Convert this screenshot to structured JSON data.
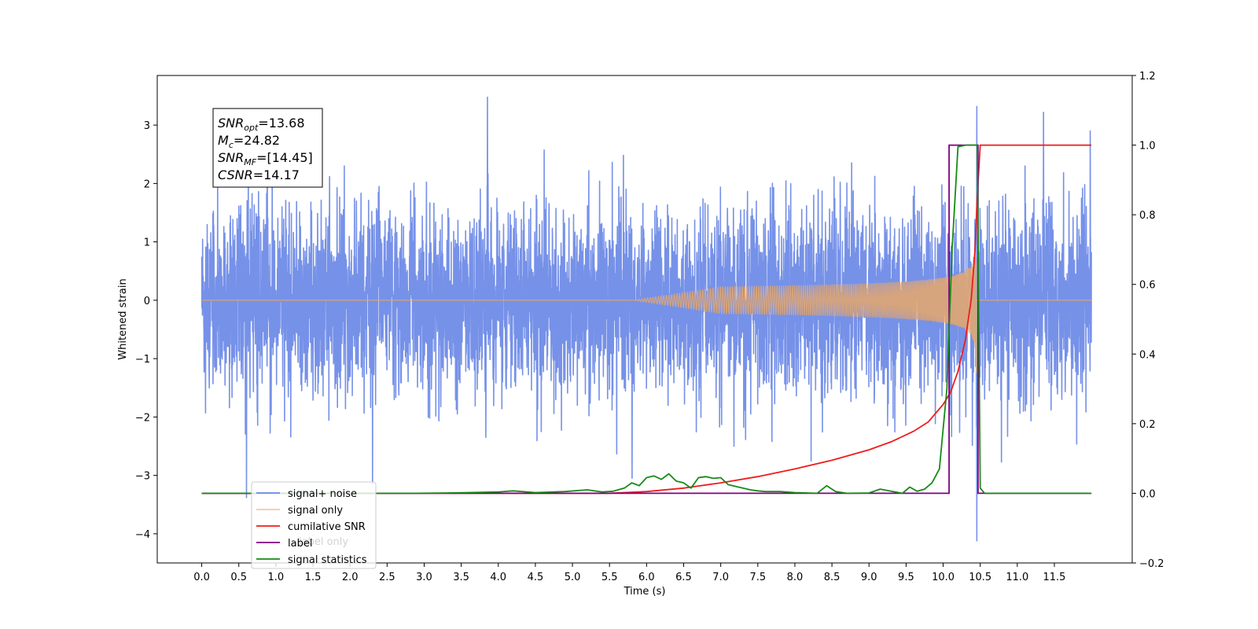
{
  "chart_data": {
    "type": "line",
    "xlabel": "Time (s)",
    "ylabel": "Whitened strain",
    "xlim": [
      -0.6,
      12.55
    ],
    "ylim": [
      -4.5,
      3.85
    ],
    "y2lim": [
      -0.2,
      1.2
    ],
    "xticks": [
      "0.0",
      "0.5",
      "1.0",
      "1.5",
      "2.0",
      "2.5",
      "3.0",
      "3.5",
      "4.0",
      "4.5",
      "5.0",
      "5.5",
      "6.0",
      "6.5",
      "7.0",
      "7.5",
      "8.0",
      "8.5",
      "9.0",
      "9.5",
      "10.0",
      "10.5",
      "11.0",
      "11.5"
    ],
    "yticks": [
      "−4",
      "−3",
      "−2",
      "−1",
      "0",
      "1",
      "2",
      "3"
    ],
    "y2ticks": [
      "−0.2",
      "0.0",
      "0.2",
      "0.4",
      "0.6",
      "0.8",
      "1.0",
      "1.2"
    ],
    "grid": false,
    "legend_position": "lower-left",
    "series": [
      {
        "name": "signal+ noise",
        "axis": "left",
        "color": "#6a88e6",
        "duration_s": 12.0,
        "typical_amplitude_range": [
          -2.4,
          2.5
        ],
        "extremes": {
          "max": 3.48,
          "max_t": 3.85,
          "min": -4.12,
          "min_t": 10.45
        },
        "notable_peaks": [
          [
            0.6,
            -3.38
          ],
          [
            0.88,
            3.12
          ],
          [
            2.3,
            -3.15
          ],
          [
            3.85,
            3.48
          ],
          [
            5.8,
            -3.05
          ],
          [
            10.45,
            3.32
          ],
          [
            11.35,
            3.22
          ],
          [
            11.98,
            2.9
          ]
        ]
      },
      {
        "name": "signal only",
        "axis": "left",
        "color": "#e8a76a",
        "waveform": "inspiral chirp",
        "onset_s": 5.8,
        "merger_s": 10.45,
        "peak_amplitude": 1.25,
        "after_merger_value": 0.0
      },
      {
        "name": "cumilative SNR",
        "axis": "right",
        "color": "#ee1c1c",
        "x": [
          0.0,
          5.5,
          6.0,
          6.5,
          7.0,
          7.5,
          8.0,
          8.5,
          9.0,
          9.3,
          9.6,
          9.8,
          10.0,
          10.1,
          10.2,
          10.3,
          10.38,
          10.43,
          10.46,
          10.5,
          12.0
        ],
        "y": [
          0.0,
          0.0,
          0.005,
          0.015,
          0.03,
          0.048,
          0.07,
          0.095,
          0.125,
          0.148,
          0.178,
          0.205,
          0.255,
          0.29,
          0.35,
          0.44,
          0.56,
          0.7,
          0.85,
          1.0,
          1.0
        ]
      },
      {
        "name": "label",
        "axis": "right",
        "color": "#800080",
        "x": [
          0.0,
          10.08,
          10.08,
          10.47,
          10.47,
          12.0
        ],
        "y": [
          0.0,
          0.0,
          1.0,
          1.0,
          0.0,
          0.0
        ]
      },
      {
        "name": "signal statistics",
        "axis": "right",
        "color": "#178a17",
        "x": [
          0.0,
          2.9,
          3.3,
          3.6,
          4.0,
          4.2,
          4.5,
          4.9,
          5.2,
          5.4,
          5.55,
          5.7,
          5.8,
          5.9,
          6.0,
          6.1,
          6.2,
          6.3,
          6.4,
          6.5,
          6.6,
          6.7,
          6.8,
          6.9,
          7.0,
          7.1,
          7.2,
          7.4,
          7.5,
          7.6,
          7.8,
          8.0,
          8.3,
          8.43,
          8.55,
          8.7,
          9.0,
          9.15,
          9.3,
          9.45,
          9.55,
          9.65,
          9.75,
          9.85,
          9.95,
          10.05,
          10.12,
          10.2,
          10.3,
          10.38,
          10.46,
          10.5,
          10.56,
          12.0
        ],
        "y": [
          0.0,
          0.0,
          0.001,
          0.002,
          0.004,
          0.007,
          0.002,
          0.005,
          0.01,
          0.004,
          0.006,
          0.015,
          0.03,
          0.022,
          0.045,
          0.05,
          0.04,
          0.056,
          0.035,
          0.03,
          0.015,
          0.045,
          0.048,
          0.043,
          0.045,
          0.025,
          0.02,
          0.01,
          0.007,
          0.005,
          0.005,
          0.002,
          0.0,
          0.022,
          0.005,
          0.0,
          0.001,
          0.012,
          0.006,
          0.0,
          0.018,
          0.006,
          0.012,
          0.03,
          0.07,
          0.3,
          0.7,
          0.995,
          1.0,
          1.0,
          1.0,
          0.015,
          0.0,
          0.0
        ]
      }
    ],
    "annotation": {
      "lines": [
        {
          "symbol": "SNR",
          "sub": "opt",
          "value": "=13.68"
        },
        {
          "symbol": "M",
          "sub": "c",
          "value": "=24.82"
        },
        {
          "symbol": "SNR",
          "sub": "MF",
          "value": "=[14.45]"
        },
        {
          "symbol": "CSNR",
          "sub": "",
          "value": "=14.17"
        }
      ]
    },
    "legend": [
      "signal+ noise",
      "signal only",
      "cumilative SNR",
      "label",
      "signal statistics"
    ],
    "legend_overlap_text": "label only"
  }
}
